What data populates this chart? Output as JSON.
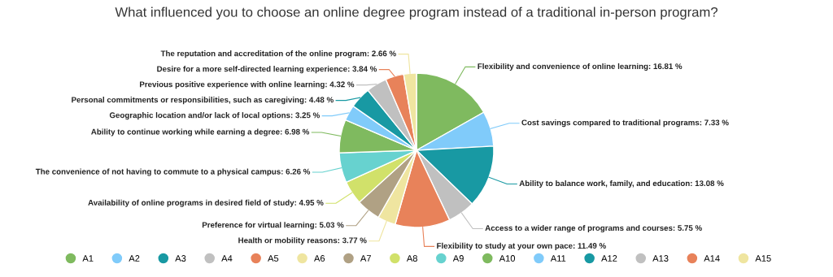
{
  "chart_data": {
    "type": "pie",
    "title": "What influenced you to choose an online degree program instead of a traditional in-person program?",
    "categories": [
      "A1",
      "A2",
      "A3",
      "A4",
      "A5",
      "A6",
      "A7",
      "A8",
      "A9",
      "A10",
      "A11",
      "A12",
      "A13",
      "A14",
      "A15"
    ],
    "values": [
      16.81,
      7.33,
      13.08,
      5.75,
      11.49,
      3.77,
      5.03,
      4.95,
      6.26,
      6.98,
      3.25,
      4.48,
      4.32,
      3.84,
      2.66
    ],
    "colors": [
      "#7fba5f",
      "#80cbfa",
      "#1899a3",
      "#c0c0c0",
      "#e8825a",
      "#efe5a0",
      "#b0a184",
      "#d1e16a",
      "#67d2cf",
      "#7fba5f",
      "#80cbfa",
      "#1899a3",
      "#c0c0c0",
      "#e8825a",
      "#efe5a0"
    ],
    "value_labels": [
      "Flexibility and convenience of online learning: 16.81 %",
      "Cost savings compared to traditional programs: 7.33 %",
      "Ability to balance work, family, and education: 13.08 %",
      "Access to a wider range of programs and courses: 5.75 %",
      "Flexibility to study at your own pace: 11.49 %",
      "Health or mobility reasons: 3.77 %",
      "Preference for virtual learning: 5.03 %",
      "Availability of online programs in desired field of study: 4.95 %",
      "The convenience of not having to commute to a physical campus: 6.26 %",
      "Ability to continue working while earning a degree: 6.98 %",
      "Geographic location and/or lack of local options: 3.25 %",
      "Personal commitments or responsibilities, such as caregiving: 4.48 %",
      "Previous positive experience with online learning: 4.32 %",
      "Desire for a more self-directed learning experience: 3.84 %",
      "The reputation and accreditation of the online program: 2.66 %"
    ],
    "legend": "bottom"
  }
}
